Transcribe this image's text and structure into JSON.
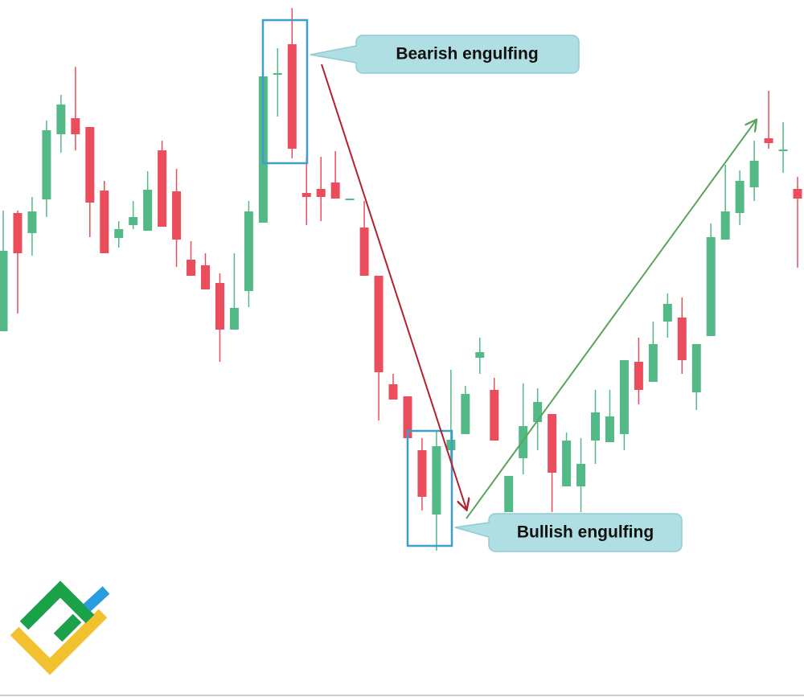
{
  "chart_data": {
    "type": "candlestick",
    "ylim": [
      0,
      867
    ],
    "up_color": "#53b987",
    "down_color": "#eb4d5c",
    "open": [
      455,
      602,
      577,
      619,
      700,
      720,
      709,
      630,
      571,
      587,
      580,
      680,
      629,
      544,
      537,
      515,
      457,
      505,
      590,
      774,
      812,
      627,
      632,
      640,
      619,
      584,
      524,
      389,
      374,
      307,
      227,
      307,
      327,
      422,
      382,
      230,
      297,
      342,
      352,
      262,
      262,
      319,
      317,
      327,
      417,
      392,
      467,
      472,
      379,
      449,
      569,
      602,
      634,
      695,
      680,
      632
    ],
    "high": [
      605,
      605,
      622,
      717,
      749,
      784,
      709,
      642,
      592,
      617,
      654,
      692,
      657,
      567,
      552,
      527,
      552,
      617,
      772,
      807,
      857,
      672,
      672,
      679,
      620,
      617,
      524,
      402,
      374,
      322,
      332,
      407,
      387,
      447,
      397,
      275,
      390,
      384,
      352,
      329,
      322,
      382,
      382,
      419,
      447,
      467,
      502,
      497,
      439,
      589,
      662,
      655,
      692,
      754,
      715,
      647
    ],
    "low": [
      455,
      477,
      549,
      597,
      677,
      680,
      572,
      552,
      559,
      582,
      580,
      585,
      535,
      524,
      507,
      417,
      457,
      485,
      590,
      722,
      670,
      587,
      592,
      620,
      619,
      524,
      344,
      370,
      322,
      232,
      182,
      297,
      327,
      402,
      319,
      230,
      277,
      307,
      230,
      262,
      230,
      290,
      317,
      307,
      364,
      392,
      447,
      402,
      357,
      449,
      569,
      587,
      617,
      682,
      652,
      534
    ],
    "close": [
      555,
      552,
      604,
      705,
      737,
      700,
      615,
      552,
      582,
      597,
      631,
      585,
      569,
      524,
      507,
      457,
      484,
      604,
      772,
      776,
      682,
      622,
      622,
      620,
      620,
      524,
      404,
      370,
      322,
      249,
      312,
      320,
      377,
      429,
      319,
      275,
      337,
      367,
      279,
      319,
      290,
      354,
      349,
      419,
      382,
      439,
      489,
      419,
      439,
      572,
      604,
      642,
      667,
      689,
      681,
      620
    ],
    "annotations": [
      {
        "text": "Bearish engulfing"
      },
      {
        "text": "Bullish engulfing"
      }
    ]
  }
}
